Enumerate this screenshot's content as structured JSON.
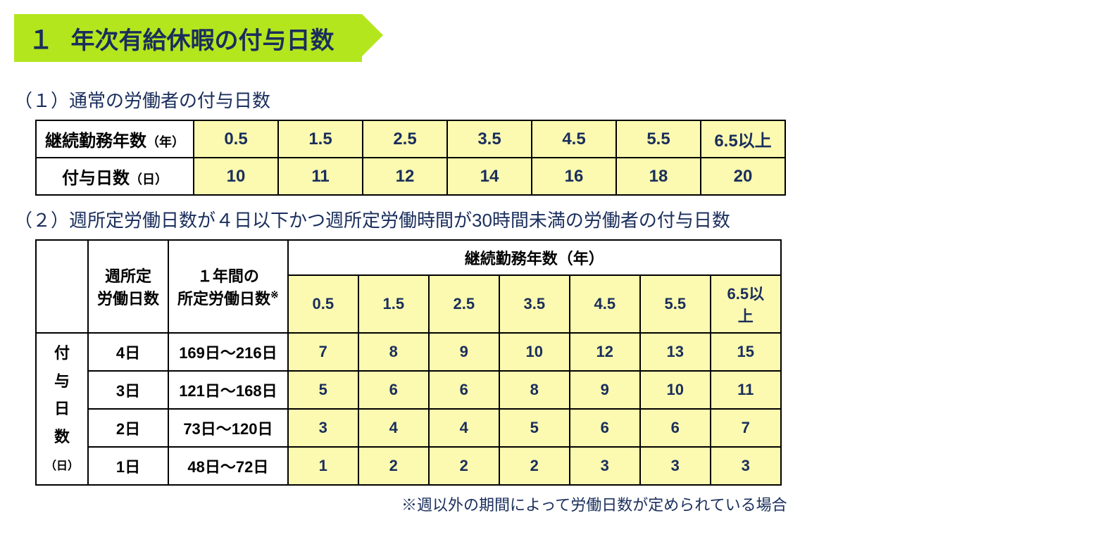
{
  "header": {
    "number": "１",
    "title": "年次有給休暇の付与日数"
  },
  "subsection1": {
    "title": "（１）通常の労働者の付与日数",
    "row1_label": "継続勤務年数",
    "row1_unit": "（年）",
    "row2_label": "付与日数",
    "row2_unit": "（日）",
    "years": [
      "0.5",
      "1.5",
      "2.5",
      "3.5",
      "4.5",
      "5.5",
      "6.5以上"
    ],
    "days": [
      "10",
      "11",
      "12",
      "14",
      "16",
      "18",
      "20"
    ]
  },
  "subsection2": {
    "title": "（２）週所定労働日数が４日以下かつ週所定労働時間が30時間未満の労働者の付与日数",
    "col1_header_line1": "週所定",
    "col1_header_line2": "労働日数",
    "col2_header_line1": "１年間の",
    "col2_header_line2": "所定労働日数",
    "col2_sup": "※",
    "col3_header": "継続勤務年数（年）",
    "years": [
      "0.5",
      "1.5",
      "2.5",
      "3.5",
      "4.5",
      "5.5",
      "6.5以上"
    ],
    "vertical_label": "付与日数",
    "vertical_unit": "（日）",
    "rows": [
      {
        "weekly": "4日",
        "annual": "169日～216日",
        "values": [
          "7",
          "8",
          "9",
          "10",
          "12",
          "13",
          "15"
        ]
      },
      {
        "weekly": "3日",
        "annual": "121日～168日",
        "values": [
          "5",
          "6",
          "6",
          "8",
          "9",
          "10",
          "11"
        ]
      },
      {
        "weekly": "2日",
        "annual": "73日～120日",
        "values": [
          "3",
          "4",
          "4",
          "5",
          "6",
          "6",
          "7"
        ]
      },
      {
        "weekly": "1日",
        "annual": "48日～72日",
        "values": [
          "1",
          "2",
          "2",
          "2",
          "3",
          "3",
          "3"
        ]
      }
    ],
    "footnote": "※週以外の期間によって労働日数が定められている場合"
  },
  "colors": {
    "accent_bg": "#b4e61e",
    "highlight_bg": "#fbfab0",
    "text_primary": "#1a2e5c",
    "border": "#000000"
  }
}
